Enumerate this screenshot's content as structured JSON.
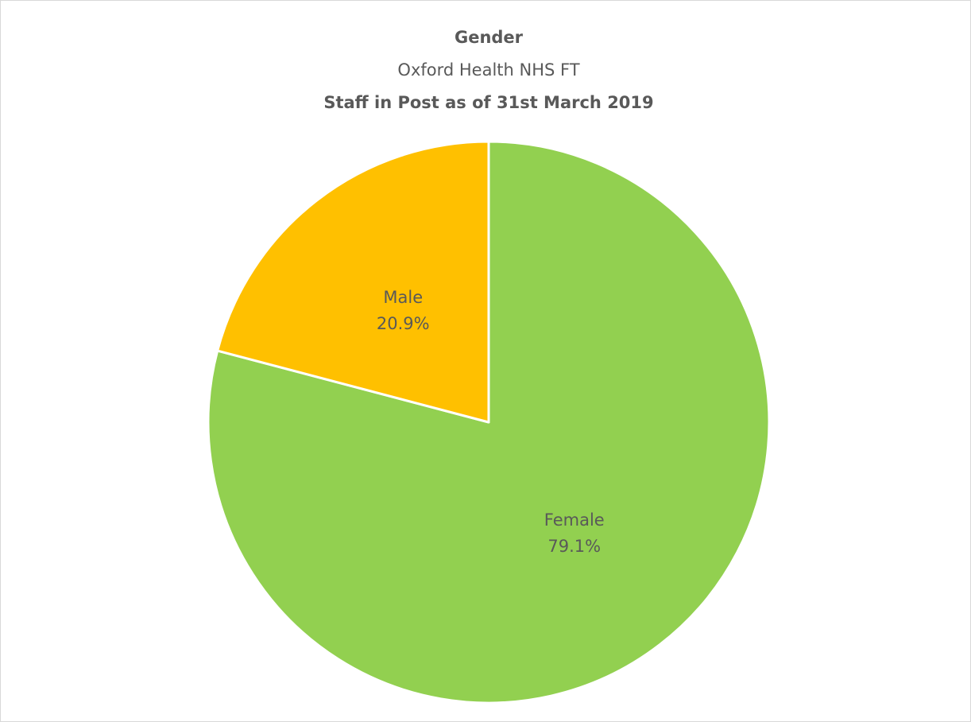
{
  "chart_data": {
    "type": "pie",
    "title": "Gender",
    "subtitle": "Oxford Health NHS FT",
    "subtitle2": "Staff in Post as of 31st March 2019",
    "categories": [
      "Female",
      "Male"
    ],
    "values": [
      79.1,
      20.9
    ],
    "value_labels": [
      "79.1%",
      "20.9%"
    ],
    "colors": [
      "#92d050",
      "#ffc000"
    ]
  }
}
